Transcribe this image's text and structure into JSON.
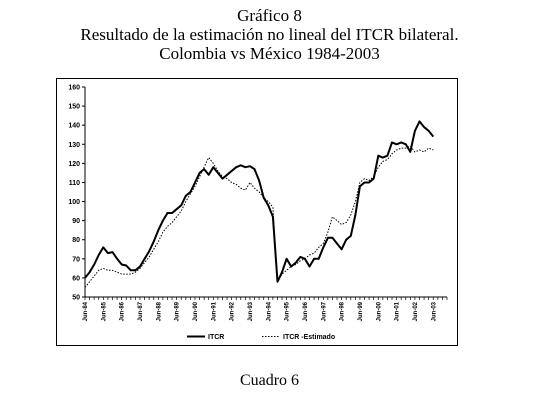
{
  "page": {
    "title_lines": [
      "Gráfico 8",
      "Resultado de la estimación no lineal del ITCR bilateral.",
      "Colombia vs México 1984-2003"
    ],
    "caption": "Cuadro 6"
  },
  "chart_data": {
    "type": "line",
    "title": "Resultado de la estimación no lineal del ITCR bilateral. Colombia vs México 1984-2003",
    "xlabel": "",
    "ylabel": "",
    "ylim": [
      50,
      160
    ],
    "y_ticks": [
      50,
      60,
      70,
      80,
      90,
      100,
      110,
      120,
      130,
      140,
      150,
      160
    ],
    "x_tick_labels": [
      "Jun-84",
      "Jun-85",
      "Jun-86",
      "Jun-87",
      "Jun-88",
      "Jun-89",
      "Jun-90",
      "Jun-91",
      "Jun-92",
      "Jun-93",
      "Jun-94",
      "Jun-95",
      "Jun-96",
      "Jun-97",
      "Jun-98",
      "Jun-99",
      "Jun-00",
      "Jun-01",
      "Jun-02",
      "Jun-03"
    ],
    "x_start_year": 1984.0,
    "x_end_year": 2003.75,
    "grid": false,
    "legend_position": "bottom",
    "series": [
      {
        "name": "ITCR",
        "style": "solid",
        "color": "#000000",
        "points": [
          [
            1984.0,
            60
          ],
          [
            1984.25,
            63
          ],
          [
            1984.5,
            67
          ],
          [
            1984.75,
            72
          ],
          [
            1985.0,
            76
          ],
          [
            1985.25,
            73
          ],
          [
            1985.5,
            73.5
          ],
          [
            1985.75,
            70
          ],
          [
            1986.0,
            67
          ],
          [
            1986.25,
            66.5
          ],
          [
            1986.5,
            64
          ],
          [
            1986.75,
            64
          ],
          [
            1987.0,
            66
          ],
          [
            1987.25,
            70
          ],
          [
            1987.5,
            74
          ],
          [
            1987.75,
            79
          ],
          [
            1988.0,
            85
          ],
          [
            1988.25,
            90
          ],
          [
            1988.5,
            94
          ],
          [
            1988.75,
            94
          ],
          [
            1989.0,
            96
          ],
          [
            1989.25,
            98
          ],
          [
            1989.5,
            103
          ],
          [
            1989.75,
            105
          ],
          [
            1990.0,
            110
          ],
          [
            1990.25,
            115
          ],
          [
            1990.5,
            117
          ],
          [
            1990.75,
            114
          ],
          [
            1991.0,
            118
          ],
          [
            1991.25,
            115
          ],
          [
            1991.5,
            112
          ],
          [
            1991.75,
            114
          ],
          [
            1992.0,
            116
          ],
          [
            1992.25,
            118
          ],
          [
            1992.5,
            119
          ],
          [
            1992.75,
            118
          ],
          [
            1993.0,
            118.5
          ],
          [
            1993.25,
            117
          ],
          [
            1993.5,
            111
          ],
          [
            1993.75,
            102
          ],
          [
            1994.0,
            98
          ],
          [
            1994.25,
            92
          ],
          [
            1994.5,
            58
          ],
          [
            1994.75,
            63
          ],
          [
            1995.0,
            70
          ],
          [
            1995.25,
            66
          ],
          [
            1995.5,
            68
          ],
          [
            1995.75,
            71
          ],
          [
            1996.0,
            70
          ],
          [
            1996.25,
            66
          ],
          [
            1996.5,
            70
          ],
          [
            1996.75,
            70
          ],
          [
            1997.0,
            76
          ],
          [
            1997.25,
            81
          ],
          [
            1997.5,
            81
          ],
          [
            1997.75,
            78
          ],
          [
            1998.0,
            75
          ],
          [
            1998.25,
            80
          ],
          [
            1998.5,
            82
          ],
          [
            1998.75,
            93
          ],
          [
            1999.0,
            108
          ],
          [
            1999.25,
            110
          ],
          [
            1999.5,
            110
          ],
          [
            1999.75,
            112
          ],
          [
            2000.0,
            124
          ],
          [
            2000.25,
            123
          ],
          [
            2000.5,
            124
          ],
          [
            2000.75,
            131
          ],
          [
            2001.0,
            130
          ],
          [
            2001.25,
            131
          ],
          [
            2001.5,
            130
          ],
          [
            2001.75,
            126
          ],
          [
            2002.0,
            137
          ],
          [
            2002.25,
            142
          ],
          [
            2002.5,
            139
          ],
          [
            2002.75,
            137
          ],
          [
            2003.0,
            134
          ]
        ]
      },
      {
        "name": "ITCR -Estimado",
        "style": "dotted",
        "color": "#000000",
        "points": [
          [
            1984.0,
            55
          ],
          [
            1984.25,
            58
          ],
          [
            1984.5,
            61
          ],
          [
            1984.75,
            64
          ],
          [
            1985.0,
            65
          ],
          [
            1985.25,
            64
          ],
          [
            1985.5,
            64
          ],
          [
            1985.75,
            63
          ],
          [
            1986.0,
            62
          ],
          [
            1986.25,
            62
          ],
          [
            1986.5,
            62
          ],
          [
            1986.75,
            63
          ],
          [
            1987.0,
            65
          ],
          [
            1987.25,
            68
          ],
          [
            1987.5,
            71
          ],
          [
            1987.75,
            75
          ],
          [
            1988.0,
            79
          ],
          [
            1988.25,
            84
          ],
          [
            1988.5,
            87
          ],
          [
            1988.75,
            89
          ],
          [
            1989.0,
            92
          ],
          [
            1989.25,
            95
          ],
          [
            1989.5,
            100
          ],
          [
            1989.75,
            104
          ],
          [
            1990.0,
            108
          ],
          [
            1990.25,
            113
          ],
          [
            1990.5,
            118
          ],
          [
            1990.75,
            123
          ],
          [
            1991.0,
            120
          ],
          [
            1991.25,
            116
          ],
          [
            1991.5,
            113
          ],
          [
            1991.75,
            112
          ],
          [
            1992.0,
            110
          ],
          [
            1992.25,
            109
          ],
          [
            1992.5,
            107
          ],
          [
            1992.75,
            106
          ],
          [
            1993.0,
            110
          ],
          [
            1993.25,
            107
          ],
          [
            1993.5,
            105
          ],
          [
            1993.75,
            102
          ],
          [
            1994.0,
            100
          ],
          [
            1994.25,
            97
          ],
          [
            1994.5,
            58
          ],
          [
            1994.75,
            62
          ],
          [
            1995.0,
            64
          ],
          [
            1995.25,
            66
          ],
          [
            1995.5,
            67
          ],
          [
            1995.75,
            69
          ],
          [
            1996.0,
            70
          ],
          [
            1996.25,
            72
          ],
          [
            1996.5,
            73
          ],
          [
            1996.75,
            76
          ],
          [
            1997.0,
            78
          ],
          [
            1997.25,
            84
          ],
          [
            1997.5,
            92
          ],
          [
            1997.75,
            90
          ],
          [
            1998.0,
            88
          ],
          [
            1998.25,
            89
          ],
          [
            1998.5,
            93
          ],
          [
            1998.75,
            100
          ],
          [
            1999.0,
            110
          ],
          [
            1999.25,
            112
          ],
          [
            1999.5,
            111
          ],
          [
            1999.75,
            113
          ],
          [
            2000.0,
            118
          ],
          [
            2000.25,
            121
          ],
          [
            2000.5,
            122
          ],
          [
            2000.75,
            125
          ],
          [
            2001.0,
            127
          ],
          [
            2001.25,
            128
          ],
          [
            2001.5,
            128
          ],
          [
            2001.75,
            129
          ],
          [
            2002.0,
            126
          ],
          [
            2002.25,
            127
          ],
          [
            2002.5,
            126
          ],
          [
            2002.75,
            128
          ],
          [
            2003.0,
            127
          ]
        ]
      }
    ]
  }
}
